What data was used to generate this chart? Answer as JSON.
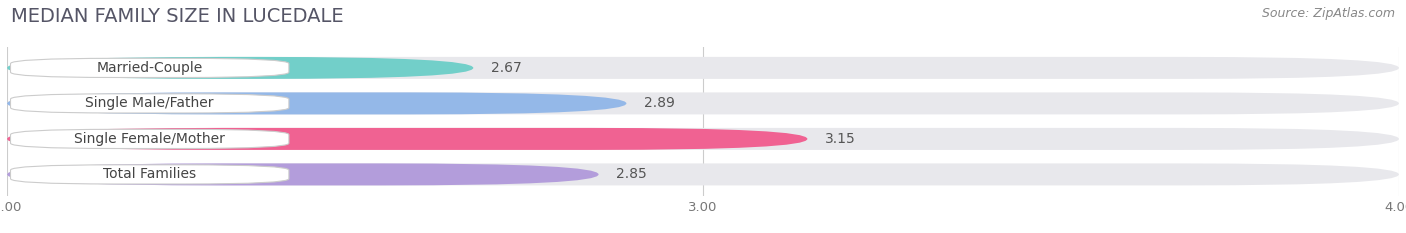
{
  "title": "MEDIAN FAMILY SIZE IN LUCEDALE",
  "source": "Source: ZipAtlas.com",
  "categories": [
    "Married-Couple",
    "Single Male/Father",
    "Single Female/Mother",
    "Total Families"
  ],
  "values": [
    2.67,
    2.89,
    3.15,
    2.85
  ],
  "bar_colors": [
    "#72cfc9",
    "#94b8e8",
    "#f06292",
    "#b39ddb"
  ],
  "bar_bg_color": "#e8e8ec",
  "xlim_min": 2.0,
  "xlim_max": 4.0,
  "xticks": [
    2.0,
    3.0,
    4.0
  ],
  "background_color": "#ffffff",
  "title_fontsize": 14,
  "source_fontsize": 9,
  "label_fontsize": 10,
  "value_fontsize": 10
}
